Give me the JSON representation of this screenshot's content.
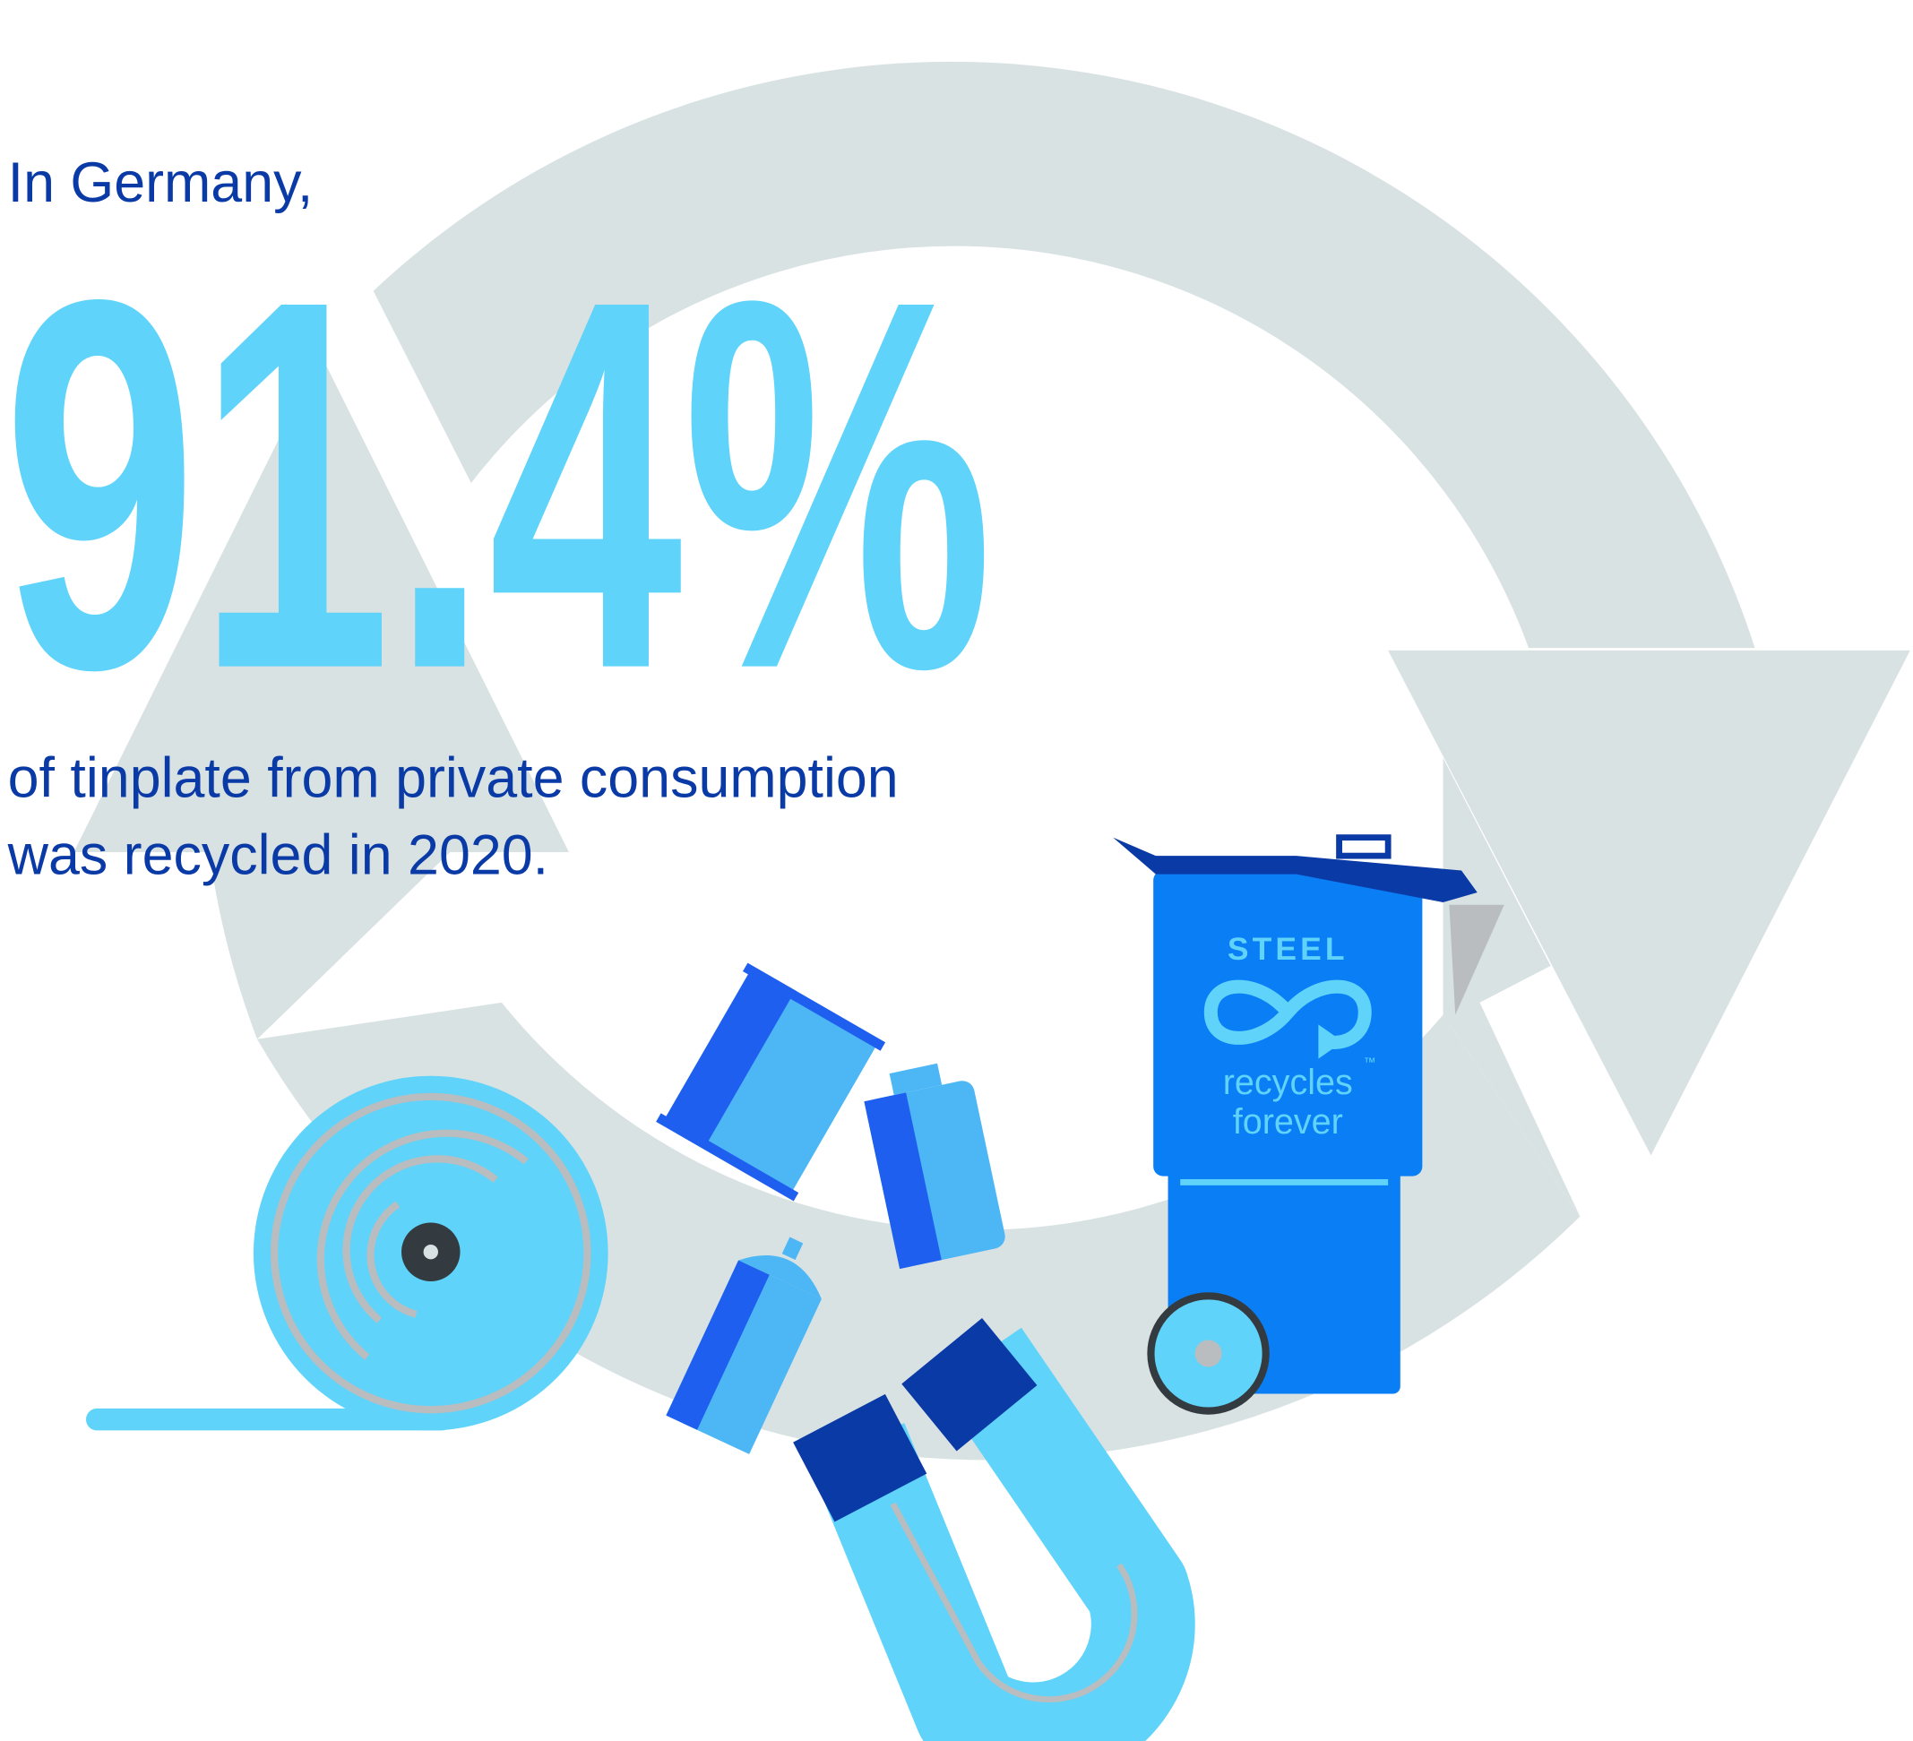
{
  "intro": "In Germany,",
  "headline": "91.4%",
  "body": [
    "of tinplate from private consumption",
    "was recycled in 2020."
  ],
  "logo": {
    "title": "STEEL",
    "tagline": [
      "recycles",
      "forever"
    ],
    "mark": "™"
  }
}
